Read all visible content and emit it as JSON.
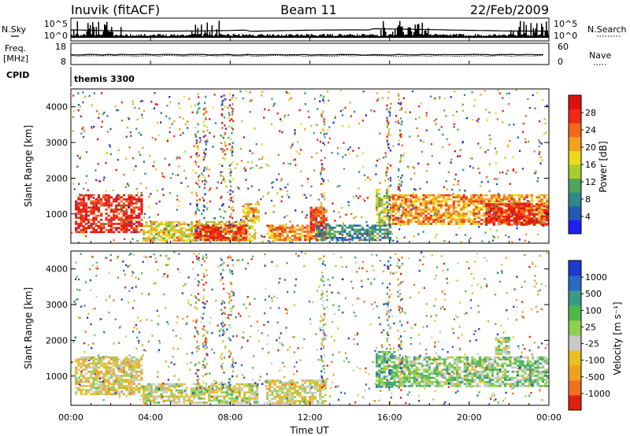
{
  "header": {
    "station": "Inuvik (fitACF)",
    "beam": "Beam 11",
    "date": "22/Feb/2009"
  },
  "param_panels": {
    "nsky_label": "N.Sky",
    "nsearch_label": "N.Search",
    "noise_ticks": [
      "10^5",
      "10^0"
    ],
    "freq_label": "Freq.",
    "freq_unit": "[MHz]",
    "freq_ticks": [
      "18",
      "8"
    ],
    "nave_label": "Nave",
    "nave_ticks": [
      "60",
      "0"
    ],
    "cpid_label": "CPID",
    "cpid_value": "themis 3300"
  },
  "axes": {
    "time_ticks": [
      "00:00",
      "04:00",
      "08:00",
      "12:00",
      "16:00",
      "20:00",
      "00:00"
    ],
    "xlabel": "Time UT",
    "ylabel": "Slant Range [km]",
    "range_ticks": [
      "1000",
      "2000",
      "3000",
      "4000"
    ]
  },
  "power_scale": {
    "title": "Power [dB]",
    "ticks": [
      "4",
      "8",
      "12",
      "16",
      "20",
      "24",
      "28"
    ],
    "colors": [
      "#1f1ff0",
      "#2757b4",
      "#2e8a8a",
      "#4ea55a",
      "#a8cc30",
      "#f0d81c",
      "#f5a020",
      "#f06818",
      "#ee2a14",
      "#e01010"
    ]
  },
  "velocity_scale": {
    "title": "Velocity [m s⁻¹]",
    "ticks": [
      "1000",
      "500",
      "100",
      "25",
      "-25",
      "-100",
      "-500",
      "-1000"
    ],
    "colors": [
      "#1a3ad0",
      "#2a6ac0",
      "#3a9a8a",
      "#4eb848",
      "#90d050",
      "#c8c8c8",
      "#e8c020",
      "#f0a020",
      "#f07020",
      "#e02010"
    ]
  },
  "chart_data": [
    {
      "type": "heatmap",
      "name": "power",
      "x_range_hours": [
        0,
        24
      ],
      "y_range_km": [
        180,
        4500
      ],
      "scale_range_db": [
        0,
        30
      ],
      "ylabel": "Slant Range [km]",
      "xlabel": "Time UT",
      "regions": [
        {
          "t": [
            0.2,
            3.6
          ],
          "r": [
            500,
            1550
          ],
          "value": 27
        },
        {
          "t": [
            3.6,
            9.2
          ],
          "r": [
            250,
            800
          ],
          "value": 16
        },
        {
          "t": [
            6.2,
            8.8
          ],
          "r": [
            250,
            700
          ],
          "value": 26
        },
        {
          "t": [
            8.6,
            9.4
          ],
          "r": [
            800,
            1300
          ],
          "value": 18
        },
        {
          "t": [
            9.8,
            12.0
          ],
          "r": [
            250,
            700
          ],
          "value": 20
        },
        {
          "t": [
            12.0,
            12.8
          ],
          "r": [
            300,
            1200
          ],
          "value": 24
        },
        {
          "t": [
            15.3,
            16.0
          ],
          "r": [
            700,
            1700
          ],
          "value": 14
        },
        {
          "t": [
            16.0,
            24.0
          ],
          "r": [
            700,
            1550
          ],
          "value": 20
        },
        {
          "t": [
            20.8,
            24.0
          ],
          "r": [
            700,
            1300
          ],
          "value": 27
        },
        {
          "t": [
            12.3,
            16.0
          ],
          "r": [
            250,
            700
          ],
          "value": 8
        }
      ]
    },
    {
      "type": "heatmap",
      "name": "velocity",
      "x_range_hours": [
        0,
        24
      ],
      "y_range_km": [
        180,
        4500
      ],
      "scale_range_ms": [
        -1000,
        1000
      ],
      "ylabel": "Slant Range [km]",
      "xlabel": "Time UT",
      "regions": [
        {
          "t": [
            0.2,
            3.6
          ],
          "r": [
            500,
            1550
          ],
          "value": -200
        },
        {
          "t": [
            3.6,
            9.4
          ],
          "r": [
            250,
            800
          ],
          "value": -80
        },
        {
          "t": [
            9.8,
            12.8
          ],
          "r": [
            250,
            900
          ],
          "value": -150
        },
        {
          "t": [
            15.3,
            16.3
          ],
          "r": [
            700,
            1700
          ],
          "value": 300
        },
        {
          "t": [
            16.3,
            24.0
          ],
          "r": [
            700,
            1550
          ],
          "value": 120
        },
        {
          "t": [
            21.3,
            22.0
          ],
          "r": [
            1600,
            2100
          ],
          "value": 0
        }
      ]
    }
  ]
}
